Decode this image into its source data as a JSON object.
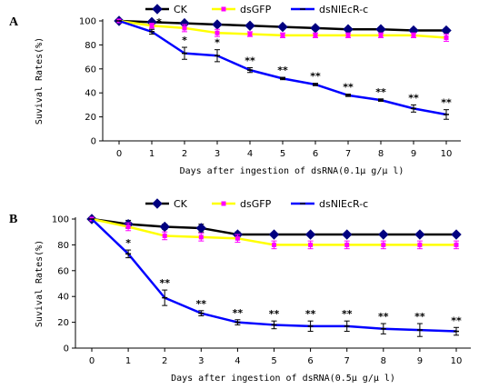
{
  "chart_data": [
    {
      "type": "line",
      "panel": "A",
      "x": [
        0,
        1,
        2,
        3,
        4,
        5,
        6,
        7,
        8,
        9,
        10
      ],
      "xlabel": "Days after ingestion of dsRNA(0.1μ g/μ l)",
      "ylabel": "Suvival Rates(%)",
      "xlim": [
        0,
        10
      ],
      "ylim": [
        0,
        100
      ],
      "yticks": [
        0,
        20,
        40,
        60,
        80,
        100
      ],
      "grid": false,
      "legend": "top",
      "series": [
        {
          "name": "CK",
          "color": "#000000",
          "marker": "diamond",
          "marker_color": "#000080",
          "values": [
            100,
            99,
            98,
            97,
            96,
            95,
            94,
            93,
            93,
            92,
            92
          ],
          "errors": [
            0,
            1,
            1,
            1,
            1,
            1,
            1,
            1,
            1,
            1,
            1
          ]
        },
        {
          "name": "dsGFP",
          "color": "#ffff00",
          "marker": "square",
          "marker_color": "#ff00ff",
          "values": [
            100,
            96,
            94,
            90,
            89,
            88,
            88,
            88,
            88,
            88,
            86
          ],
          "errors": [
            0,
            2,
            3,
            3,
            2,
            2,
            2,
            2,
            2,
            2,
            3
          ]
        },
        {
          "name": "dsNlEcR-c",
          "color": "#0000ff",
          "marker": "dash",
          "marker_color": "#000000",
          "values": [
            100,
            91,
            73,
            71,
            59,
            52,
            47,
            38,
            34,
            27,
            22
          ],
          "errors": [
            0,
            2,
            5,
            5,
            2,
            1,
            1,
            1,
            1,
            3,
            4
          ],
          "significance": [
            "",
            "*",
            "*",
            "*",
            "**",
            "**",
            "**",
            "**",
            "**",
            "**",
            "**"
          ]
        }
      ]
    },
    {
      "type": "line",
      "panel": "B",
      "x": [
        0,
        1,
        2,
        3,
        4,
        5,
        6,
        7,
        8,
        9,
        10
      ],
      "xlabel": "Days after ingestion of dsRNA(0.5μ g/μ l)",
      "ylabel": "Suvival Rates(%)",
      "xlim": [
        0,
        10
      ],
      "ylim": [
        0,
        100
      ],
      "yticks": [
        0,
        20,
        40,
        60,
        80,
        100
      ],
      "grid": false,
      "legend": "top",
      "series": [
        {
          "name": "CK",
          "color": "#000000",
          "marker": "diamond",
          "marker_color": "#000080",
          "values": [
            100,
            96,
            94,
            93,
            88,
            88,
            88,
            88,
            88,
            88,
            88
          ],
          "errors": [
            0,
            3,
            2,
            3,
            2,
            1,
            1,
            1,
            1,
            1,
            1
          ]
        },
        {
          "name": "dsGFP",
          "color": "#ffff00",
          "marker": "square",
          "marker_color": "#ff00ff",
          "values": [
            100,
            94,
            87,
            86,
            85,
            80,
            80,
            80,
            80,
            80,
            80
          ],
          "errors": [
            0,
            3,
            3,
            3,
            3,
            3,
            3,
            3,
            3,
            3,
            3
          ]
        },
        {
          "name": "dsNlEcR-c",
          "color": "#0000ff",
          "marker": "dash",
          "marker_color": "#000000",
          "values": [
            100,
            73,
            39,
            27,
            20,
            18,
            17,
            17,
            15,
            14,
            13
          ],
          "errors": [
            0,
            3,
            6,
            2,
            2,
            3,
            4,
            4,
            4,
            5,
            3
          ],
          "significance": [
            "",
            "*",
            "**",
            "**",
            "**",
            "**",
            "**",
            "**",
            "**",
            "**",
            "**"
          ]
        }
      ]
    }
  ]
}
